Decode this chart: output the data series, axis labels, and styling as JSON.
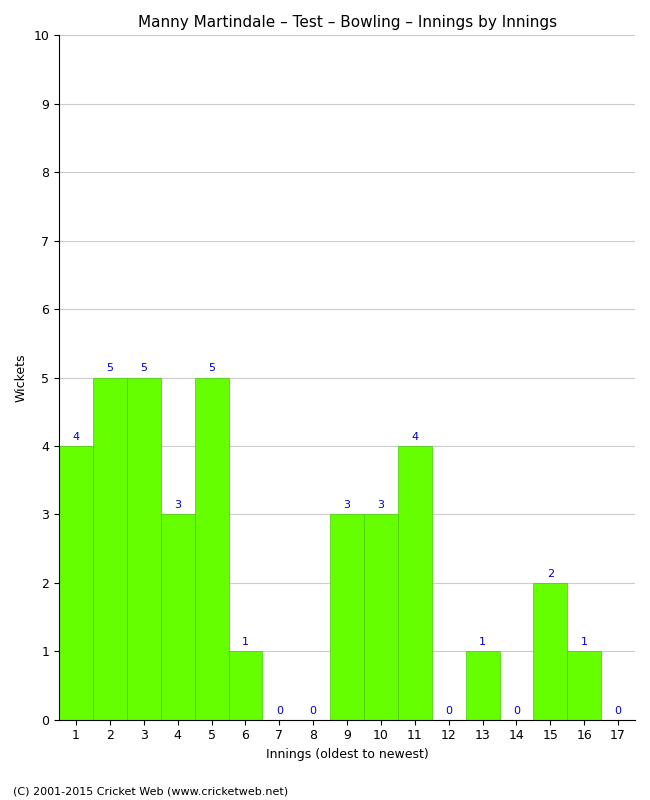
{
  "title": "Manny Martindale – Test – Bowling – Innings by Innings",
  "xlabel": "Innings (oldest to newest)",
  "ylabel": "Wickets",
  "categories": [
    1,
    2,
    3,
    4,
    5,
    6,
    7,
    8,
    9,
    10,
    11,
    12,
    13,
    14,
    15,
    16,
    17
  ],
  "values": [
    4,
    5,
    5,
    3,
    5,
    1,
    0,
    0,
    3,
    3,
    4,
    0,
    1,
    0,
    2,
    1,
    0
  ],
  "bar_color": "#66ff00",
  "bar_edge_color": "#44cc00",
  "label_color": "#0000cc",
  "ylim": [
    0,
    10
  ],
  "yticks": [
    0,
    1,
    2,
    3,
    4,
    5,
    6,
    7,
    8,
    9,
    10
  ],
  "background_color": "#ffffff",
  "grid_color": "#cccccc",
  "title_fontsize": 11,
  "label_fontsize": 9,
  "tick_fontsize": 9,
  "annotation_fontsize": 8,
  "footer": "(C) 2001-2015 Cricket Web (www.cricketweb.net)"
}
